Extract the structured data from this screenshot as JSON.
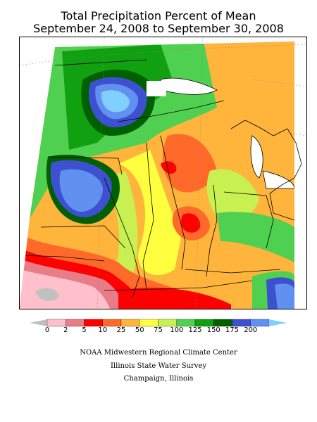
{
  "title_line1": "Total Precipitation Percent of Mean",
  "title_line2": "September 24, 2008 to September 30, 2008",
  "legend": {
    "labels": [
      "0",
      "2",
      "5",
      "10",
      "25",
      "50",
      "75",
      "100",
      "125",
      "150",
      "175",
      "200"
    ],
    "colors": [
      "#c0c0c0",
      "#ffc0cb",
      "#e87c88",
      "#ff0000",
      "#ff6a2a",
      "#ffb43c",
      "#ffff40",
      "#c8f050",
      "#50d050",
      "#10a010",
      "#006000",
      "#3c50d0",
      "#6090f0",
      "#80d0ff"
    ]
  },
  "credits": {
    "line1": "NOAA Midwestern Regional Climate Center",
    "line2": "Illinois State Water Survey",
    "line3": "Champaign, Illinois"
  }
}
